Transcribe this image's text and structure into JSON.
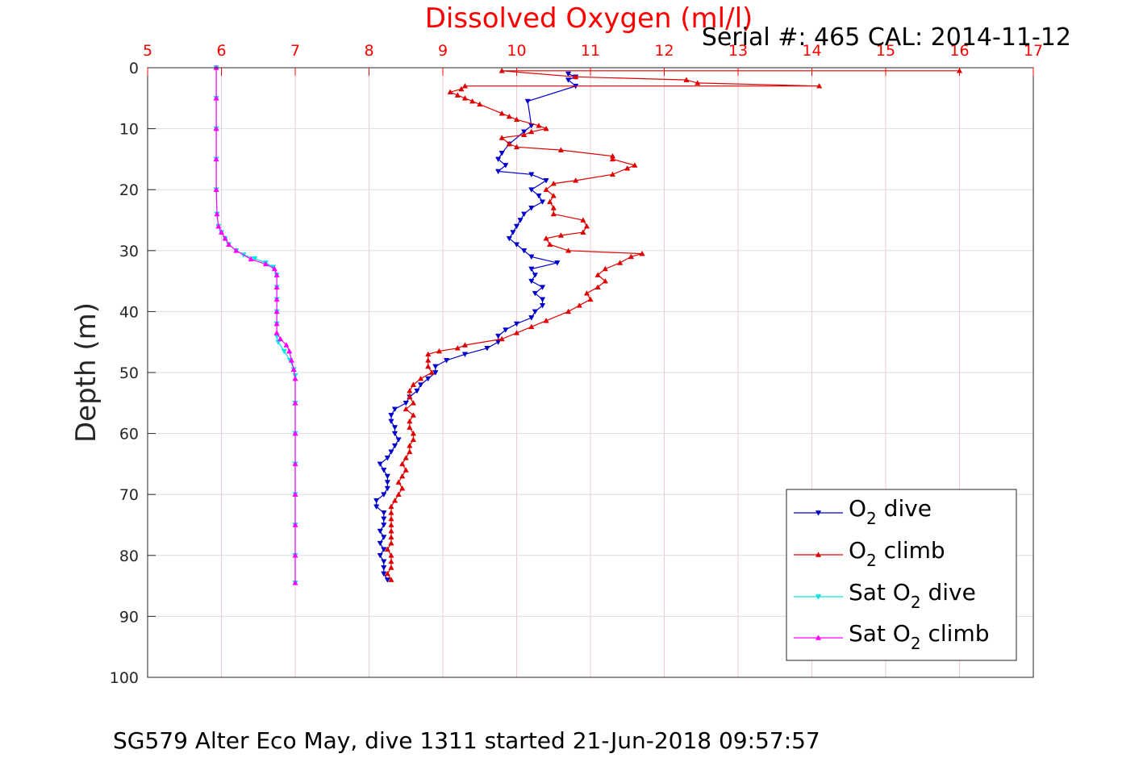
{
  "chart_data": {
    "type": "line",
    "title": "Dissolved Oxygen (ml/l)",
    "serial_text": "Serial #: 465  CAL: 2014-11-12",
    "ylabel": "Depth (m)",
    "footer": "SG579 Alter Eco May, dive 1311 started 21-Jun-2018 09:57:57",
    "xlim": [
      5,
      17
    ],
    "ylim": [
      0,
      100
    ],
    "y_reversed": true,
    "x_axis_position": "top",
    "x_ticks": [
      "5",
      "6",
      "7",
      "8",
      "9",
      "10",
      "11",
      "12",
      "13",
      "14",
      "15",
      "16",
      "17"
    ],
    "y_ticks": [
      "0",
      "10",
      "20",
      "30",
      "40",
      "50",
      "60",
      "70",
      "80",
      "90",
      "100"
    ],
    "grid": true,
    "legend_position": "bottom-right",
    "colors": {
      "title": "#ff0000",
      "x_ticks": "#ff0000",
      "x_grid": "#f3c8d0",
      "y_grid": "#dddddd",
      "o2_dive": "#0000cc",
      "o2_climb": "#e00000",
      "sat_dive": "#00e5e5",
      "sat_climb": "#ff00ff"
    },
    "series": [
      {
        "key": "o2_dive",
        "name_main": "O",
        "name_sub": "2",
        "name_rest": " dive",
        "color": "#0000cc",
        "marker": "triangle-down",
        "points": [
          [
            10.7,
            1
          ],
          [
            10.8,
            1.5
          ],
          [
            10.7,
            2
          ],
          [
            10.8,
            3
          ],
          [
            10.15,
            5.5
          ],
          [
            10.2,
            9.5
          ],
          [
            10.1,
            10.5
          ],
          [
            9.9,
            12.5
          ],
          [
            9.8,
            14
          ],
          [
            9.75,
            15
          ],
          [
            9.85,
            16
          ],
          [
            9.75,
            17
          ],
          [
            10.2,
            17.5
          ],
          [
            10.4,
            18.5
          ],
          [
            10.2,
            20
          ],
          [
            10.3,
            21
          ],
          [
            10.35,
            22
          ],
          [
            10.2,
            23
          ],
          [
            10.1,
            24
          ],
          [
            10.05,
            25
          ],
          [
            10.0,
            26
          ],
          [
            9.95,
            27
          ],
          [
            9.9,
            28
          ],
          [
            10.0,
            29
          ],
          [
            10.1,
            30
          ],
          [
            10.2,
            31
          ],
          [
            10.55,
            32
          ],
          [
            10.2,
            33
          ],
          [
            10.25,
            34
          ],
          [
            10.2,
            35
          ],
          [
            10.35,
            36
          ],
          [
            10.25,
            37
          ],
          [
            10.35,
            38
          ],
          [
            10.35,
            39
          ],
          [
            10.25,
            40
          ],
          [
            10.2,
            41
          ],
          [
            10.0,
            42
          ],
          [
            9.85,
            43
          ],
          [
            9.75,
            44
          ],
          [
            9.75,
            45
          ],
          [
            9.6,
            46
          ],
          [
            9.3,
            47
          ],
          [
            9.05,
            48
          ],
          [
            8.9,
            49
          ],
          [
            8.9,
            50
          ],
          [
            8.8,
            51
          ],
          [
            8.7,
            52
          ],
          [
            8.65,
            53
          ],
          [
            8.55,
            54
          ],
          [
            8.5,
            55
          ],
          [
            8.35,
            56
          ],
          [
            8.3,
            57
          ],
          [
            8.3,
            58
          ],
          [
            8.35,
            59
          ],
          [
            8.35,
            60
          ],
          [
            8.4,
            61
          ],
          [
            8.35,
            62
          ],
          [
            8.3,
            63
          ],
          [
            8.25,
            64
          ],
          [
            8.15,
            65
          ],
          [
            8.2,
            66
          ],
          [
            8.25,
            67
          ],
          [
            8.25,
            68
          ],
          [
            8.25,
            69
          ],
          [
            8.2,
            70
          ],
          [
            8.1,
            71
          ],
          [
            8.1,
            72
          ],
          [
            8.2,
            73
          ],
          [
            8.2,
            74
          ],
          [
            8.2,
            75
          ],
          [
            8.15,
            76
          ],
          [
            8.2,
            77
          ],
          [
            8.15,
            78
          ],
          [
            8.2,
            79
          ],
          [
            8.15,
            80
          ],
          [
            8.2,
            81
          ],
          [
            8.2,
            82
          ],
          [
            8.2,
            83
          ],
          [
            8.25,
            84
          ]
        ]
      },
      {
        "key": "o2_climb",
        "name_main": "O",
        "name_sub": "2",
        "name_rest": " climb",
        "color": "#e00000",
        "marker": "triangle-up",
        "points": [
          [
            8.3,
            84
          ],
          [
            8.25,
            83
          ],
          [
            8.3,
            82
          ],
          [
            8.3,
            81
          ],
          [
            8.3,
            80
          ],
          [
            8.25,
            79
          ],
          [
            8.3,
            78
          ],
          [
            8.3,
            77
          ],
          [
            8.3,
            76
          ],
          [
            8.3,
            75
          ],
          [
            8.3,
            74
          ],
          [
            8.3,
            73
          ],
          [
            8.3,
            72
          ],
          [
            8.35,
            71
          ],
          [
            8.4,
            70
          ],
          [
            8.45,
            69
          ],
          [
            8.4,
            68
          ],
          [
            8.45,
            67
          ],
          [
            8.5,
            66
          ],
          [
            8.45,
            65
          ],
          [
            8.5,
            64
          ],
          [
            8.55,
            63
          ],
          [
            8.55,
            62
          ],
          [
            8.6,
            61
          ],
          [
            8.6,
            60
          ],
          [
            8.55,
            59
          ],
          [
            8.55,
            58
          ],
          [
            8.6,
            57
          ],
          [
            8.5,
            56
          ],
          [
            8.6,
            55
          ],
          [
            8.55,
            54
          ],
          [
            8.55,
            53
          ],
          [
            8.6,
            52
          ],
          [
            8.7,
            51
          ],
          [
            8.85,
            50
          ],
          [
            8.8,
            49
          ],
          [
            8.8,
            48
          ],
          [
            8.8,
            47
          ],
          [
            8.95,
            46.5
          ],
          [
            9.2,
            46
          ],
          [
            9.3,
            45.5
          ],
          [
            9.8,
            44.5
          ],
          [
            10.0,
            43.5
          ],
          [
            10.2,
            42.5
          ],
          [
            10.4,
            41.5
          ],
          [
            10.7,
            40
          ],
          [
            10.85,
            39
          ],
          [
            11.0,
            38
          ],
          [
            10.95,
            37
          ],
          [
            11.1,
            36
          ],
          [
            11.2,
            35
          ],
          [
            11.1,
            34
          ],
          [
            11.2,
            33
          ],
          [
            11.4,
            32
          ],
          [
            11.55,
            31
          ],
          [
            11.7,
            30.5
          ],
          [
            10.7,
            30
          ],
          [
            10.45,
            29
          ],
          [
            10.4,
            28
          ],
          [
            10.6,
            27.5
          ],
          [
            10.9,
            27
          ],
          [
            10.95,
            26
          ],
          [
            10.9,
            25
          ],
          [
            10.5,
            24
          ],
          [
            10.5,
            23
          ],
          [
            10.45,
            22
          ],
          [
            10.5,
            21
          ],
          [
            10.4,
            20
          ],
          [
            10.5,
            19
          ],
          [
            10.8,
            18.5
          ],
          [
            11.3,
            17.5
          ],
          [
            11.5,
            16.5
          ],
          [
            11.6,
            16
          ],
          [
            11.3,
            15
          ],
          [
            11.3,
            14.5
          ],
          [
            10.6,
            13.5
          ],
          [
            10.0,
            13
          ],
          [
            9.9,
            12.5
          ],
          [
            9.8,
            11.5
          ],
          [
            10.1,
            11
          ],
          [
            10.2,
            10.5
          ],
          [
            10.4,
            10
          ],
          [
            10.3,
            9.5
          ],
          [
            10.0,
            8.5
          ],
          [
            9.9,
            8
          ],
          [
            9.8,
            7.5
          ],
          [
            9.5,
            6
          ],
          [
            9.4,
            5.5
          ],
          [
            9.3,
            5
          ],
          [
            9.2,
            4.5
          ],
          [
            9.1,
            4
          ],
          [
            9.25,
            3.5
          ],
          [
            9.3,
            3
          ],
          [
            14.1,
            3
          ],
          [
            12.45,
            2.5
          ],
          [
            12.3,
            2
          ],
          [
            10.8,
            1.5
          ],
          [
            9.8,
            0.5
          ],
          [
            16.0,
            0.5
          ]
        ]
      },
      {
        "key": "sat_dive",
        "name_main": "Sat O",
        "name_sub": "2",
        "name_rest": " dive",
        "color": "#00e5e5",
        "marker": "triangle-down",
        "points": [
          [
            5.93,
            0
          ],
          [
            5.93,
            5
          ],
          [
            5.93,
            10
          ],
          [
            5.93,
            15
          ],
          [
            5.93,
            20
          ],
          [
            5.94,
            24
          ],
          [
            5.96,
            26
          ],
          [
            6.0,
            27
          ],
          [
            6.05,
            28
          ],
          [
            6.1,
            29
          ],
          [
            6.2,
            30
          ],
          [
            6.3,
            30.7
          ],
          [
            6.45,
            31.3
          ],
          [
            6.6,
            32
          ],
          [
            6.7,
            32.7
          ],
          [
            6.75,
            34
          ],
          [
            6.75,
            36
          ],
          [
            6.75,
            38
          ],
          [
            6.75,
            40
          ],
          [
            6.75,
            42
          ],
          [
            6.75,
            44
          ],
          [
            6.77,
            45
          ],
          [
            6.85,
            46.5
          ],
          [
            6.93,
            48
          ],
          [
            6.98,
            49.5
          ],
          [
            7.0,
            50.5
          ],
          [
            7.0,
            55
          ],
          [
            7.0,
            60
          ],
          [
            7.0,
            65
          ],
          [
            7.0,
            70
          ],
          [
            7.0,
            75
          ],
          [
            7.0,
            80
          ],
          [
            7.0,
            84.5
          ]
        ]
      },
      {
        "key": "sat_climb",
        "name_main": "Sat O",
        "name_sub": "2",
        "name_rest": " climb",
        "color": "#ff00ff",
        "marker": "triangle-up",
        "points": [
          [
            7.0,
            84.5
          ],
          [
            7.0,
            80
          ],
          [
            7.0,
            75
          ],
          [
            7.0,
            70
          ],
          [
            7.0,
            65
          ],
          [
            7.0,
            60
          ],
          [
            7.0,
            55
          ],
          [
            7.0,
            51
          ],
          [
            6.98,
            49.5
          ],
          [
            6.95,
            48
          ],
          [
            6.92,
            46.5
          ],
          [
            6.88,
            45.5
          ],
          [
            6.8,
            44.5
          ],
          [
            6.75,
            43.5
          ],
          [
            6.75,
            42
          ],
          [
            6.75,
            40
          ],
          [
            6.75,
            38
          ],
          [
            6.75,
            36
          ],
          [
            6.75,
            34
          ],
          [
            6.72,
            33
          ],
          [
            6.6,
            32.2
          ],
          [
            6.4,
            31.4
          ],
          [
            6.2,
            30
          ],
          [
            6.1,
            29
          ],
          [
            6.05,
            28
          ],
          [
            6.0,
            27
          ],
          [
            5.96,
            26
          ],
          [
            5.94,
            24
          ],
          [
            5.93,
            20
          ],
          [
            5.93,
            15
          ],
          [
            5.93,
            10
          ],
          [
            5.93,
            5
          ],
          [
            5.93,
            0
          ]
        ]
      }
    ]
  }
}
